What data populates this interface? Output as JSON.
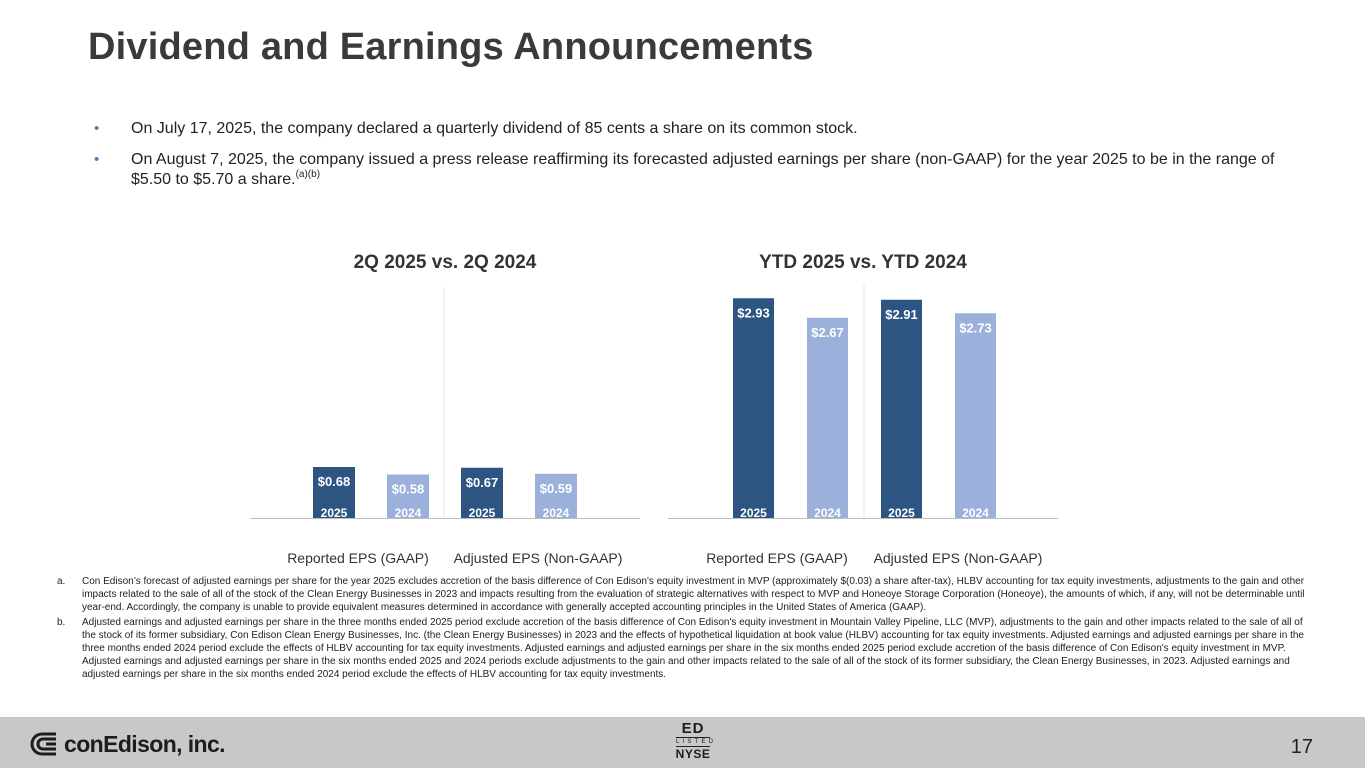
{
  "title": "Dividend and Earnings Announcements",
  "bullets": [
    {
      "marker": "•",
      "text": "On July 17, 2025, the company declared a quarterly dividend of 85 cents a share on its common stock."
    },
    {
      "marker": "•",
      "text": "On August 7, 2025, the company issued a press release reaffirming its forecasted adjusted earnings per share (non-GAAP) for the year 2025 to be in the range of $5.50 to $5.70 a share.",
      "sup": "(a)(b)"
    }
  ],
  "colors": {
    "dark_bar": "#2d5582",
    "light_bar": "#9bb0da",
    "bullet": "#4a80c0"
  },
  "chart_data": [
    {
      "type": "bar",
      "title": "2Q 2025 vs. 2Q 2024",
      "groups": [
        {
          "label": "Reported EPS (GAAP)",
          "bars": [
            {
              "year": "2025",
              "value": 0.68,
              "label": "$0.68"
            },
            {
              "year": "2024",
              "value": 0.58,
              "label": "$0.58"
            }
          ]
        },
        {
          "label": "Adjusted EPS (Non-GAAP)",
          "bars": [
            {
              "year": "2025",
              "value": 0.67,
              "label": "$0.67"
            },
            {
              "year": "2024",
              "value": 0.59,
              "label": "$0.59"
            }
          ]
        }
      ],
      "ylim": [
        0,
        3.2
      ]
    },
    {
      "type": "bar",
      "title": "YTD 2025 vs. YTD 2024",
      "groups": [
        {
          "label": "Reported EPS (GAAP)",
          "bars": [
            {
              "year": "2025",
              "value": 2.93,
              "label": "$2.93"
            },
            {
              "year": "2024",
              "value": 2.67,
              "label": "$2.67"
            }
          ]
        },
        {
          "label": "Adjusted EPS (Non-GAAP)",
          "bars": [
            {
              "year": "2025",
              "value": 2.91,
              "label": "$2.91"
            },
            {
              "year": "2024",
              "value": 2.73,
              "label": "$2.73"
            }
          ]
        }
      ],
      "ylim": [
        0,
        3.2
      ]
    }
  ],
  "footnotes": [
    {
      "letter": "a.",
      "text": "Con Edison’s forecast of adjusted earnings per share for the year 2025 excludes accretion of the basis difference of Con Edison's equity investment in MVP (approximately $(0.03) a share after-tax), HLBV accounting for tax equity investments, adjustments to the gain and other impacts related to the sale of all of the stock of the Clean Energy Businesses in 2023 and impacts resulting from the evaluation of strategic alternatives with respect to MVP and Honeoye Storage Corporation (Honeoye), the amounts of which, if any, will not be determinable until year-end. Accordingly, the company is unable to provide equivalent measures determined in accordance with generally accepted accounting principles in the United States of America (GAAP)."
    },
    {
      "letter": "b.",
      "text": "Adjusted earnings and adjusted earnings per share in the three months ended 2025 period exclude accretion of the basis difference of Con Edison's equity investment in Mountain Valley Pipeline, LLC (MVP), adjustments to the gain and other impacts related to the sale of all of the stock of its former subsidiary, Con Edison Clean Energy Businesses, Inc. (the Clean Energy Businesses) in 2023 and the effects of hypothetical liquidation at book value (HLBV) accounting for tax equity investments. Adjusted earnings and adjusted earnings per share in the three months ended 2024 period exclude the effects of HLBV accounting for tax equity investments. Adjusted earnings and adjusted earnings per share in the six months ended 2025 period exclude accretion of the basis difference of Con Edison's equity investment in MVP. Adjusted earnings and adjusted earnings per share in the six months ended 2025 and 2024 periods exclude adjustments to the gain and other impacts related to the sale of all of the stock of its former subsidiary, the Clean Energy Businesses, in 2023. Adjusted earnings and adjusted earnings per share in the six months ended 2024 period exclude the effects of HLBV accounting for tax equity investments."
    }
  ],
  "footer": {
    "logo_text": "conEdison, inc.",
    "nyse_ticker": "ED",
    "nyse_listed": "LISTED",
    "nyse_name": "NYSE",
    "page_number": "17"
  }
}
